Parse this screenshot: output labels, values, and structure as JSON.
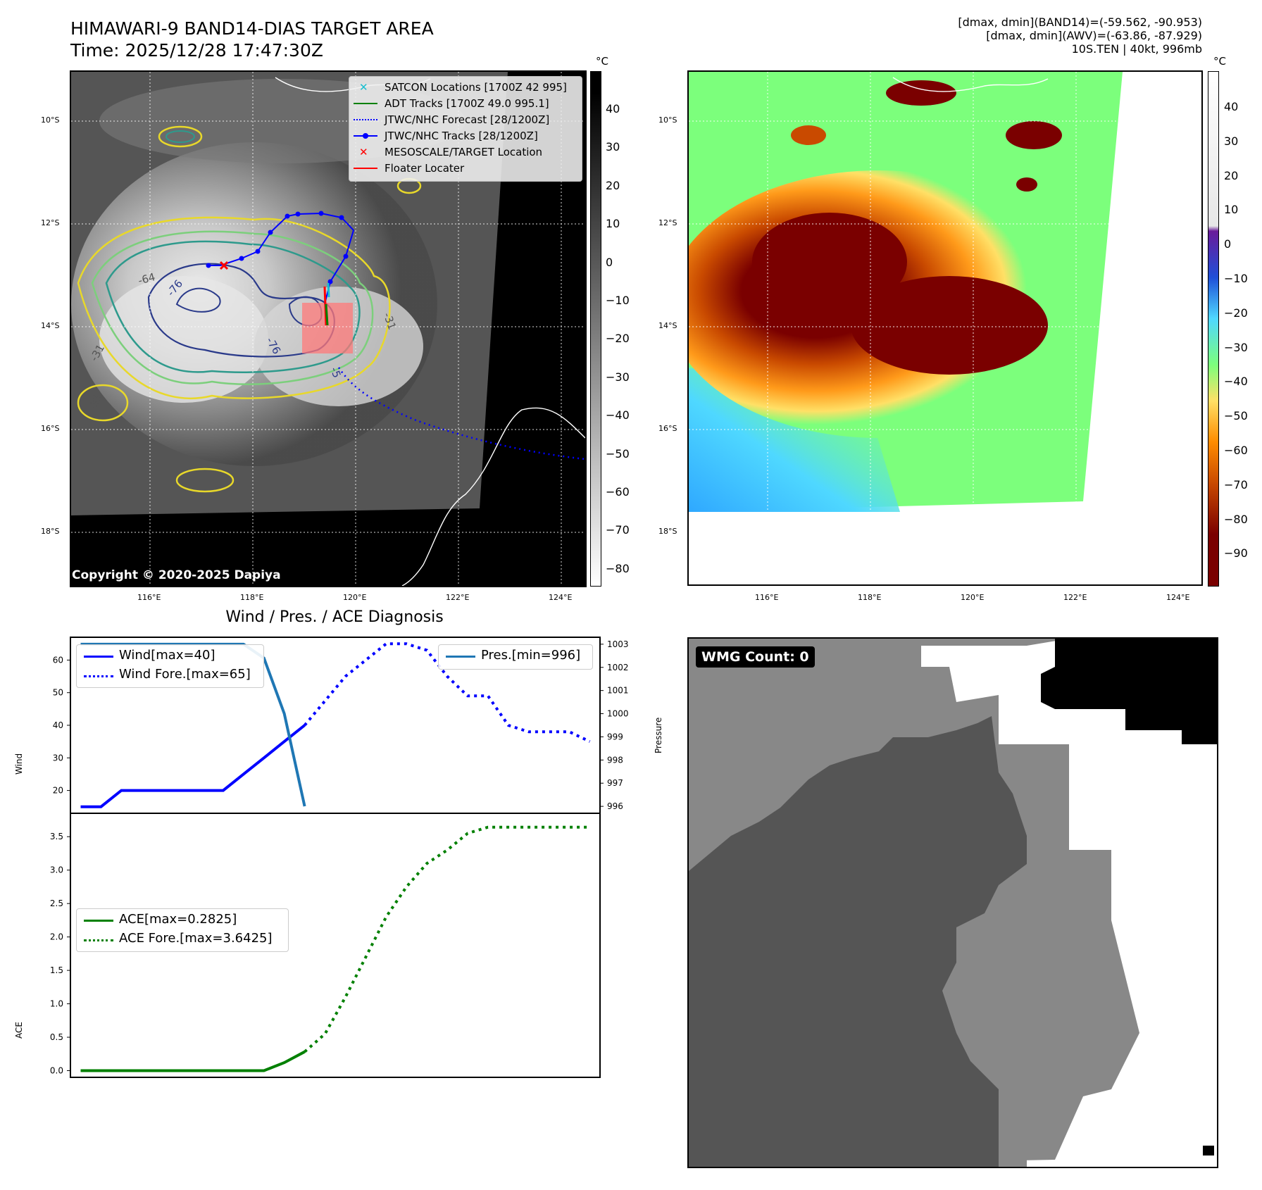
{
  "header": {
    "title": "HIMAWARI-9 BAND14-DIAS TARGET AREA",
    "time": "Time: 2025/12/28 17:47:30Z",
    "info_line1": "[dmax, dmin](BAND14)=(-59.562, -90.953)",
    "info_line2": "[dmax, dmin](AWV)=(-63.86, -87.929)",
    "info_line3": "10S.TEN | 40kt, 996mb"
  },
  "map": {
    "lat_labels": [
      "10°S",
      "12°S",
      "14°S",
      "16°S",
      "18°S"
    ],
    "lon_labels": [
      "116°E",
      "118°E",
      "120°E",
      "122°E",
      "124°E"
    ],
    "copyright": "Copyright © 2020-2025 Dapiya",
    "contour_labels": [
      "-64",
      "-76",
      "-76",
      "-31",
      "-31",
      "-31",
      "-5"
    ],
    "legend": [
      {
        "label": "SATCON Locations [1700Z 42 995]",
        "color": "#17becf",
        "icon": "x-marker-icon"
      },
      {
        "label": "ADT Tracks [1700Z 49.0 995.1]",
        "color": "#008000",
        "icon": "solid-line-icon"
      },
      {
        "label": "JTWC/NHC Forecast [28/1200Z]",
        "color": "#0000ff",
        "icon": "dotted-line-icon"
      },
      {
        "label": "JTWC/NHC Tracks [28/1200Z]",
        "color": "#0000ff",
        "icon": "line-dot-icon"
      },
      {
        "label": "MESOSCALE/TARGET Location",
        "color": "#ff0000",
        "icon": "x-marker-icon"
      },
      {
        "label": "Floater Locater",
        "color": "#ff0000",
        "icon": "solid-line-icon"
      }
    ]
  },
  "colorbar_gray": {
    "unit": "°C",
    "ticks": [
      "40",
      "30",
      "20",
      "10",
      "0",
      "−10",
      "−20",
      "−30",
      "−40",
      "−50",
      "−60",
      "−70",
      "−80"
    ]
  },
  "colorbar_color": {
    "unit": "°C",
    "ticks": [
      "40",
      "30",
      "20",
      "10",
      "0",
      "−10",
      "−20",
      "−30",
      "−40",
      "−50",
      "−60",
      "−70",
      "−80",
      "−90"
    ],
    "colors": {
      "warm": "#ffffff",
      "purple": "#6a1b9a",
      "blue": "#1f4fd8",
      "cyan": "#4fd8ff",
      "green": "#7cff7c",
      "yellow": "#ffe066",
      "orange": "#ff8c00",
      "darkred": "#7a0000"
    }
  },
  "chart_data": [
    {
      "type": "line",
      "title": "Wind / Pres. / ACE Diagnosis",
      "ylabel": "Wind",
      "y2label": "Pressure",
      "ylim": [
        13,
        67
      ],
      "y2lim": [
        995.7,
        1003.3
      ],
      "yticks": [
        "20",
        "30",
        "40",
        "50",
        "60"
      ],
      "y2ticks": [
        "996",
        "997",
        "998",
        "999",
        "1000",
        "1001",
        "1002",
        "1003"
      ],
      "series": [
        {
          "name": "Wind[max=40]",
          "color": "#0000ff",
          "style": "solid",
          "axis": "left",
          "points": [
            [
              0,
              15
            ],
            [
              1,
              15
            ],
            [
              2,
              20
            ],
            [
              3,
              20
            ],
            [
              4,
              20
            ],
            [
              5,
              20
            ],
            [
              6,
              20
            ],
            [
              7,
              20
            ],
            [
              8,
              25
            ],
            [
              9,
              30
            ],
            [
              10,
              35
            ],
            [
              11,
              40
            ]
          ]
        },
        {
          "name": "Wind Fore.[max=65]",
          "color": "#0000ff",
          "style": "dotted",
          "axis": "left",
          "points": [
            [
              11,
              40
            ],
            [
              13,
              55
            ],
            [
              15,
              65
            ],
            [
              16,
              65
            ],
            [
              17,
              63
            ],
            [
              18,
              55
            ],
            [
              19,
              49
            ],
            [
              20,
              49
            ],
            [
              21,
              40
            ],
            [
              22,
              38
            ],
            [
              23,
              38
            ],
            [
              24,
              38
            ],
            [
              25,
              35
            ]
          ]
        },
        {
          "name": "Pres.[min=996]",
          "color": "#1f77b4",
          "style": "solid",
          "axis": "right",
          "points": [
            [
              0,
              1003
            ],
            [
              1,
              1003
            ],
            [
              2,
              1003
            ],
            [
              3,
              1003
            ],
            [
              4,
              1003
            ],
            [
              5,
              1003
            ],
            [
              6,
              1003
            ],
            [
              7,
              1003
            ],
            [
              8,
              1003
            ],
            [
              9,
              1002.4
            ],
            [
              10,
              1000
            ],
            [
              11,
              996
            ]
          ]
        }
      ],
      "xlim": [
        -0.5,
        25.5
      ]
    },
    {
      "type": "line",
      "ylabel": "ACE",
      "ylim": [
        -0.1,
        3.85
      ],
      "yticks": [
        "0.0",
        "0.5",
        "1.0",
        "1.5",
        "2.0",
        "2.5",
        "3.0",
        "3.5"
      ],
      "series": [
        {
          "name": "ACE[max=0.2825]",
          "color": "#008000",
          "style": "solid",
          "points": [
            [
              0,
              0
            ],
            [
              1,
              0
            ],
            [
              2,
              0
            ],
            [
              3,
              0
            ],
            [
              4,
              0
            ],
            [
              5,
              0
            ],
            [
              6,
              0
            ],
            [
              7,
              0
            ],
            [
              8,
              0
            ],
            [
              9,
              0
            ],
            [
              10,
              0.12
            ],
            [
              11,
              0.2825
            ]
          ]
        },
        {
          "name": "ACE Fore.[max=3.6425]",
          "color": "#008000",
          "style": "dotted",
          "points": [
            [
              11,
              0.2825
            ],
            [
              12,
              0.55
            ],
            [
              13,
              1.1
            ],
            [
              14,
              1.7
            ],
            [
              15,
              2.3
            ],
            [
              16,
              2.75
            ],
            [
              17,
              3.1
            ],
            [
              18,
              3.3
            ],
            [
              19,
              3.55
            ],
            [
              20,
              3.6425
            ],
            [
              21,
              3.6425
            ],
            [
              22,
              3.6425
            ],
            [
              23,
              3.6425
            ],
            [
              24,
              3.6425
            ],
            [
              25,
              3.6425
            ]
          ]
        }
      ],
      "xlim": [
        -0.5,
        25.5
      ]
    }
  ],
  "wmg": {
    "label": "WMG Count: 0",
    "colors": {
      "black": "#000000",
      "dark": "#555555",
      "mid": "#888888",
      "white": "#ffffff"
    }
  }
}
